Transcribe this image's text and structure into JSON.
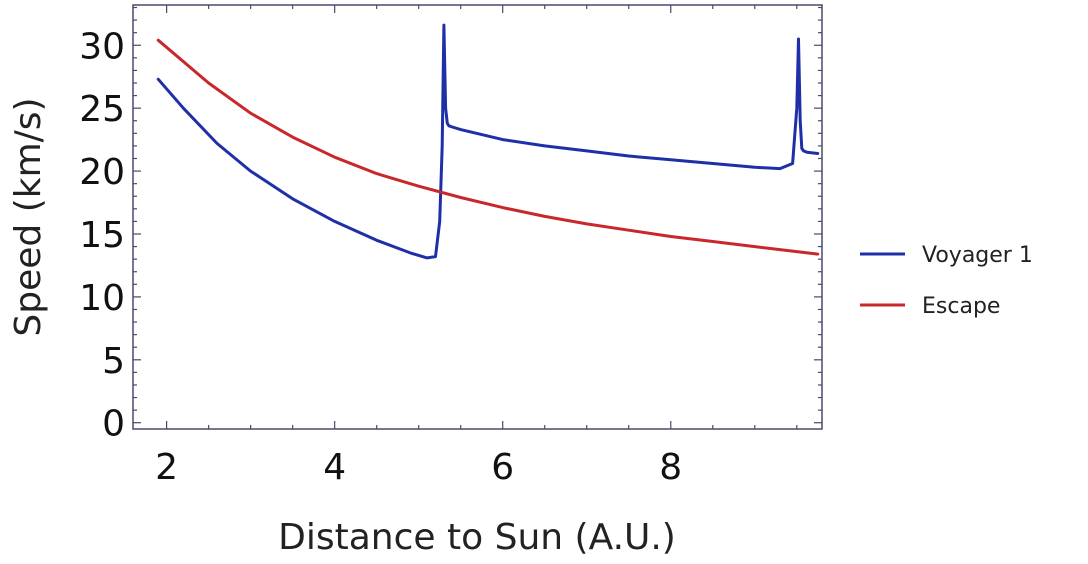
{
  "chart_data": {
    "type": "line",
    "title": "",
    "xlabel": "Distance to Sun (A.U.)",
    "ylabel": "Speed (km/s)",
    "xlim": [
      1.6,
      9.8
    ],
    "ylim": [
      -0.5,
      33.2
    ],
    "x_ticks": [
      2,
      4,
      6,
      8
    ],
    "y_ticks": [
      0,
      5,
      10,
      15,
      20,
      25,
      30
    ],
    "grid": false,
    "legend_position": "right",
    "series": [
      {
        "name": "Voyager 1",
        "color": "#1f2fa8",
        "x": [
          1.9,
          2.2,
          2.6,
          3.0,
          3.5,
          4.0,
          4.5,
          4.9,
          5.1,
          5.2,
          5.25,
          5.28,
          5.3,
          5.32,
          5.34,
          5.36,
          5.4,
          5.5,
          6.0,
          6.5,
          7.0,
          7.5,
          8.0,
          8.5,
          9.0,
          9.3,
          9.45,
          9.5,
          9.52,
          9.54,
          9.56,
          9.58,
          9.62,
          9.75
        ],
        "y": [
          27.3,
          25.0,
          22.2,
          20.0,
          17.8,
          16.0,
          14.5,
          13.5,
          13.1,
          13.2,
          16.0,
          22.0,
          31.6,
          25.0,
          23.8,
          23.6,
          23.5,
          23.3,
          22.5,
          22.0,
          21.6,
          21.2,
          20.9,
          20.6,
          20.3,
          20.2,
          20.6,
          25.0,
          30.5,
          24.0,
          21.8,
          21.6,
          21.5,
          21.4
        ]
      },
      {
        "name": "Escape",
        "color": "#c8282b",
        "x": [
          1.9,
          2.5,
          3.0,
          3.5,
          4.0,
          4.5,
          5.0,
          5.5,
          6.0,
          6.5,
          7.0,
          7.5,
          8.0,
          8.5,
          9.0,
          9.5,
          9.75
        ],
        "y": [
          30.4,
          27.0,
          24.6,
          22.7,
          21.1,
          19.8,
          18.8,
          17.9,
          17.1,
          16.4,
          15.8,
          15.3,
          14.8,
          14.4,
          14.0,
          13.6,
          13.4
        ]
      }
    ]
  }
}
